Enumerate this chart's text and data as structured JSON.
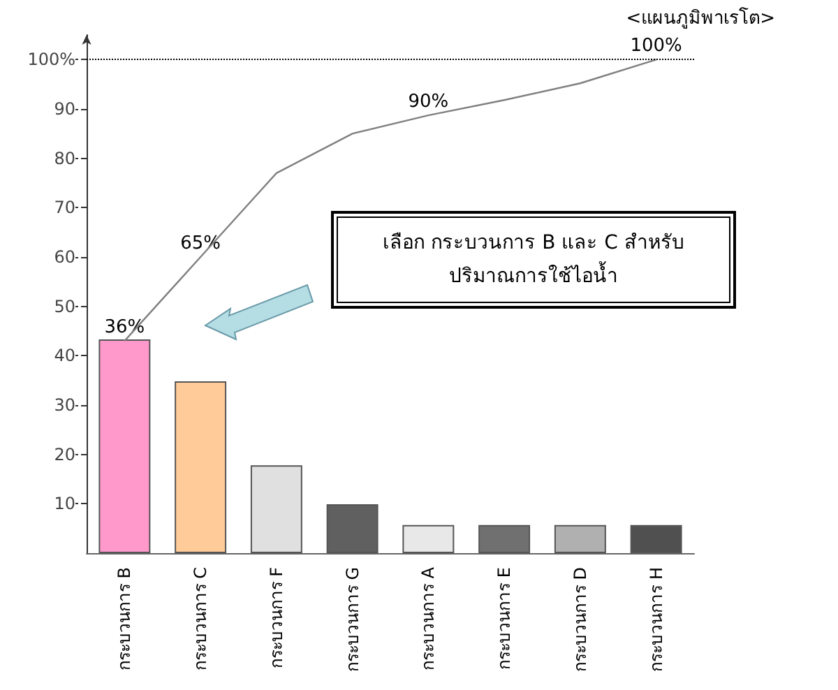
{
  "chart_data": {
    "type": "bar",
    "title": "<แผนภูมิพาเรโต>",
    "categories": [
      "กระบวนการ B",
      "กระบวนการ C",
      "กระบวนการ F",
      "กระบวนการ G",
      "กระบวนการ A",
      "กระบวนการ E",
      "กระบวนการ D",
      "กระบวนการ H"
    ],
    "series": [
      {
        "values": [
          43.3,
          34.8,
          17.8,
          9.9,
          5.7,
          5.7,
          5.7,
          5.7
        ],
        "colors": [
          "#ff99cc",
          "#ffcc99",
          "#e0e0e0",
          "#606060",
          "#e8e8e8",
          "#707070",
          "#b0b0b0",
          "#505050"
        ]
      },
      {
        "type": "line",
        "color": "#808080",
        "values": [
          43,
          60,
          77,
          85,
          88.7,
          91.8,
          95.2,
          100
        ]
      }
    ],
    "ylim": [
      0,
      105
    ],
    "yticks": [
      10,
      20,
      30,
      40,
      50,
      60,
      70,
      80,
      90,
      {
        "value": 100,
        "label": "100%"
      }
    ],
    "grid": false,
    "marker": "none",
    "line_style": "solid",
    "ref_lines": [
      {
        "axis": "y",
        "value": 100,
        "color": "#000000",
        "line_style": "dotted"
      }
    ],
    "annotations": [
      {
        "text": "36%",
        "x": "กระบวนการ B",
        "y": 43
      },
      {
        "text": "65%",
        "x": "กระบวนการ C",
        "y": 60
      },
      {
        "text": "90%",
        "x": "กระบวนการ A",
        "y": 88.7
      },
      {
        "text": "100%",
        "x": "กระบวนการ H",
        "y": 100
      },
      "เลือก กระบวนการ B และ C สำหรับ\nปริมาณการใช้ไอน้ำ"
    ]
  }
}
